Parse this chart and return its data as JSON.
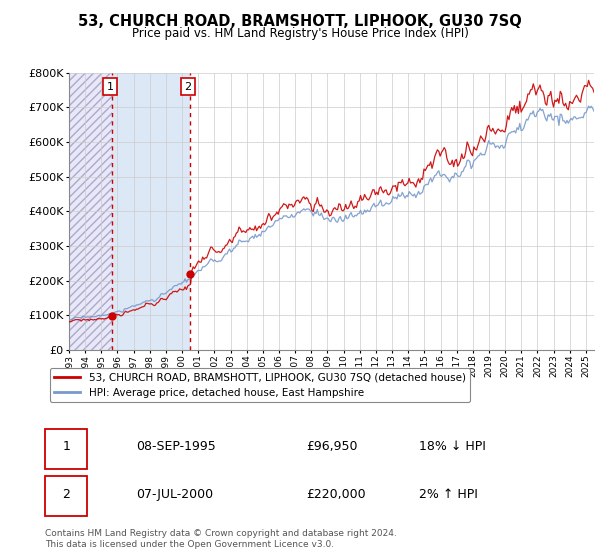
{
  "title": "53, CHURCH ROAD, BRAMSHOTT, LIPHOOK, GU30 7SQ",
  "subtitle": "Price paid vs. HM Land Registry's House Price Index (HPI)",
  "legend_label_red": "53, CHURCH ROAD, BRAMSHOTT, LIPHOOK, GU30 7SQ (detached house)",
  "legend_label_blue": "HPI: Average price, detached house, East Hampshire",
  "transaction1_label": "1",
  "transaction1_date": "08-SEP-1995",
  "transaction1_price": "£96,950",
  "transaction1_hpi": "18% ↓ HPI",
  "transaction2_label": "2",
  "transaction2_date": "07-JUL-2000",
  "transaction2_price": "£220,000",
  "transaction2_hpi": "2% ↑ HPI",
  "footer": "Contains HM Land Registry data © Crown copyright and database right 2024.\nThis data is licensed under the Open Government Licence v3.0.",
  "ylim": [
    0,
    800000
  ],
  "yticks": [
    0,
    100000,
    200000,
    300000,
    400000,
    500000,
    600000,
    700000,
    800000
  ],
  "ytick_labels": [
    "£0",
    "£100K",
    "£200K",
    "£300K",
    "£400K",
    "£500K",
    "£600K",
    "£700K",
    "£800K"
  ],
  "xstart": 1993.0,
  "xend": 2025.5,
  "transaction1_x": 1995.69,
  "transaction2_x": 2000.52,
  "t1_price": 96950,
  "t2_price": 220000,
  "background_color": "#ffffff",
  "hatch_edgecolor": "#aaaacc",
  "hatch_facecolor": "#e8e8f8",
  "blue_span_color": "#dce8f5",
  "grid_color": "#cccccc",
  "red_color": "#cc0000",
  "blue_color": "#7799cc"
}
